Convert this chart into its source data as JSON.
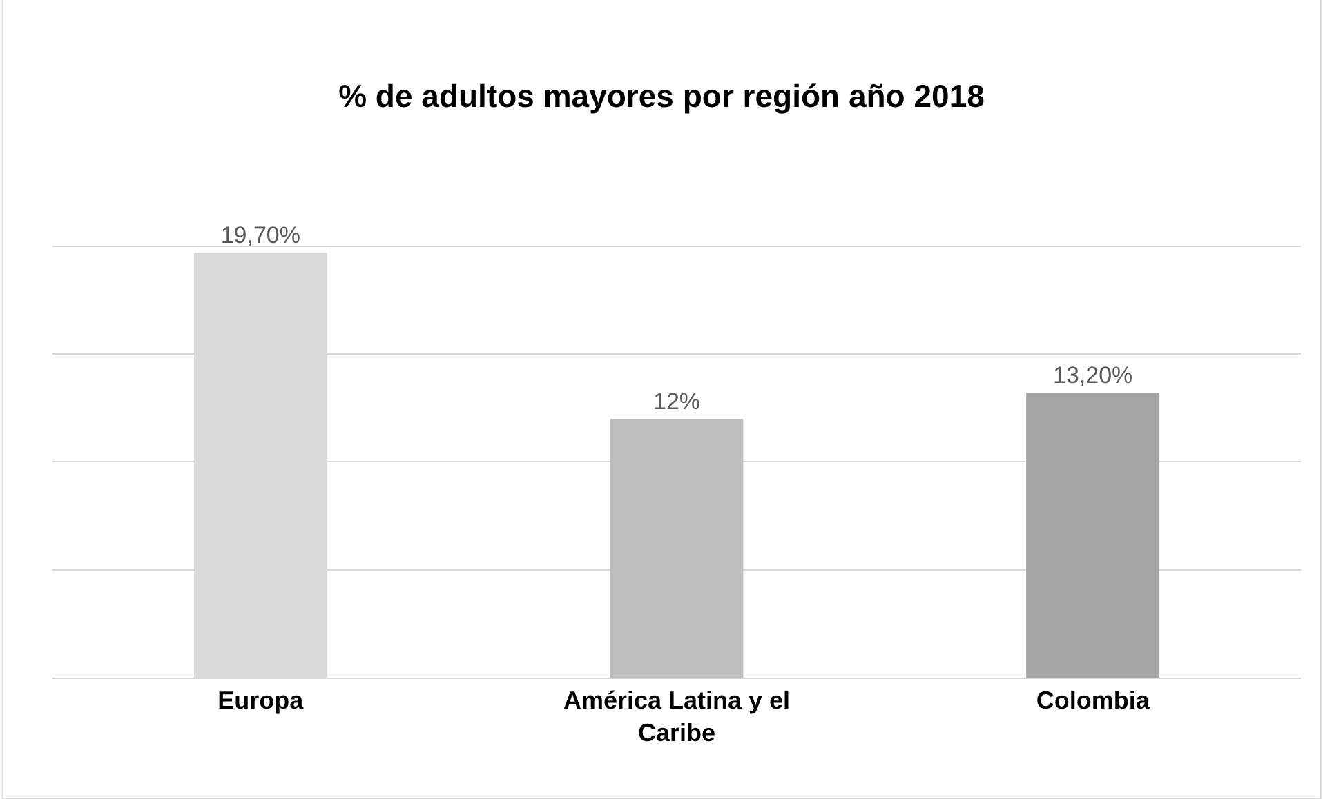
{
  "chart_data": {
    "type": "bar",
    "title": "% de adultos mayores por región año 2018",
    "categories": [
      "Europa",
      "América Latina y el Caribe",
      "Colombia"
    ],
    "values": [
      19.7,
      12,
      13.2
    ],
    "value_labels": [
      "19,70%",
      "12%",
      "13,20%"
    ],
    "colors": [
      "#d9d9d9",
      "#bfbfbf",
      "#a5a5a5"
    ],
    "grid": "y",
    "legend": false,
    "tick_labels": "x"
  }
}
